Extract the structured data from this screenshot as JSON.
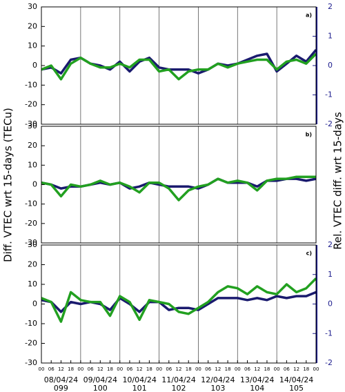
{
  "y_label": "Diff. VTEC wrt 15-days (TECu)",
  "y2_label": "Rel. VTEC diff. wrt 15-days",
  "dates": [
    "08/04/24",
    "09/04/24",
    "10/04/24",
    "11/04/24",
    "12/04/24",
    "13/04/24",
    "14/04/24"
  ],
  "doy": [
    "099",
    "100",
    "101",
    "102",
    "103",
    "104",
    "105"
  ],
  "chart_data": [
    {
      "type": "line",
      "label": "a)",
      "x": [
        0,
        6,
        12,
        18,
        24,
        30,
        36,
        42,
        48,
        54,
        60,
        66,
        72,
        78,
        84,
        90,
        96,
        102,
        108,
        114,
        120,
        126,
        132,
        138,
        144,
        150,
        156,
        162,
        168
      ],
      "xlim": [
        0,
        168
      ],
      "ylim": [
        -30,
        30
      ],
      "yticks": [
        -30,
        -20,
        -10,
        0,
        10,
        20,
        30
      ],
      "y2lim": [
        -2,
        2
      ],
      "y2ticks": [
        -2,
        -1,
        0,
        1,
        2
      ],
      "series": [
        {
          "color": "#1a1a6e",
          "values": [
            -2,
            -1,
            -4,
            3,
            4,
            1,
            0,
            -2,
            2,
            -3,
            2,
            4,
            -1,
            -2,
            -2,
            -2,
            -4,
            -2,
            1,
            0,
            1,
            3,
            5,
            6,
            -3,
            1,
            5,
            2,
            8
          ]
        },
        {
          "color": "#22a020",
          "values": [
            -2,
            0,
            -7,
            1,
            4,
            1,
            -1,
            -1,
            1,
            -1,
            3,
            3,
            -3,
            -2,
            -7,
            -3,
            -2,
            -2,
            1,
            -1,
            1,
            2,
            3,
            3,
            -2,
            2,
            3,
            1,
            6
          ]
        }
      ]
    },
    {
      "type": "line",
      "label": "b)",
      "x": [
        0,
        6,
        12,
        18,
        24,
        30,
        36,
        42,
        48,
        54,
        60,
        66,
        72,
        78,
        84,
        90,
        96,
        102,
        108,
        114,
        120,
        126,
        132,
        138,
        144,
        150,
        156,
        162,
        168
      ],
      "xlim": [
        0,
        168
      ],
      "ylim": [
        -30,
        30
      ],
      "yticks": [
        -30,
        -20,
        -10,
        0,
        10,
        20,
        30
      ],
      "series": [
        {
          "color": "#1a1a6e",
          "values": [
            1,
            0,
            -2,
            -1,
            -1,
            0,
            1,
            0,
            1,
            -2,
            -1,
            1,
            0,
            -1,
            -1,
            -1,
            -2,
            0,
            3,
            1,
            1,
            1,
            -1,
            2,
            2,
            3,
            3,
            2,
            3
          ]
        },
        {
          "color": "#22a020",
          "values": [
            1,
            0,
            -6,
            0,
            -1,
            0,
            2,
            0,
            1,
            -1,
            -4,
            1,
            1,
            -2,
            -8,
            -3,
            -1,
            0,
            3,
            1,
            2,
            1,
            -3,
            2,
            3,
            3,
            4,
            4,
            4
          ]
        }
      ]
    },
    {
      "type": "line",
      "label": "c)",
      "x": [
        0,
        6,
        12,
        18,
        24,
        30,
        36,
        42,
        48,
        54,
        60,
        66,
        72,
        78,
        84,
        90,
        96,
        102,
        108,
        114,
        120,
        126,
        132,
        138,
        144,
        150,
        156,
        162,
        168
      ],
      "xlim": [
        0,
        168
      ],
      "ylim": [
        -30,
        30
      ],
      "yticks": [
        -30,
        -20,
        -10,
        0,
        10,
        20,
        30
      ],
      "y2lim": [
        -2,
        2
      ],
      "y2ticks": [
        -2,
        -1,
        0,
        1,
        2
      ],
      "xticks": [
        {
          "value": 0,
          "label": "00"
        },
        {
          "value": 6,
          "label": "06"
        },
        {
          "value": 12,
          "label": "12"
        },
        {
          "value": 18,
          "label": "18"
        },
        {
          "value": 24,
          "label": "00"
        },
        {
          "value": 30,
          "label": "06"
        },
        {
          "value": 36,
          "label": "12"
        },
        {
          "value": 42,
          "label": "18"
        },
        {
          "value": 48,
          "label": "00"
        },
        {
          "value": 54,
          "label": "06"
        },
        {
          "value": 60,
          "label": "12"
        },
        {
          "value": 66,
          "label": "18"
        },
        {
          "value": 72,
          "label": "00"
        },
        {
          "value": 78,
          "label": "06"
        },
        {
          "value": 84,
          "label": "12"
        },
        {
          "value": 90,
          "label": "18"
        },
        {
          "value": 96,
          "label": "00"
        },
        {
          "value": 102,
          "label": "06"
        },
        {
          "value": 108,
          "label": "12"
        },
        {
          "value": 114,
          "label": "18"
        },
        {
          "value": 120,
          "label": "00"
        },
        {
          "value": 126,
          "label": "06"
        },
        {
          "value": 132,
          "label": "12"
        },
        {
          "value": 138,
          "label": "18"
        },
        {
          "value": 144,
          "label": "00"
        },
        {
          "value": 150,
          "label": "06"
        },
        {
          "value": 156,
          "label": "12"
        },
        {
          "value": 162,
          "label": "18"
        },
        {
          "value": 168,
          "label": "00"
        }
      ],
      "series": [
        {
          "color": "#1a1a6e",
          "values": [
            2,
            1,
            -4,
            1,
            0,
            1,
            0,
            -3,
            3,
            0,
            -4,
            1,
            1,
            -3,
            -2,
            -2,
            -3,
            0,
            3,
            3,
            3,
            2,
            3,
            2,
            4,
            3,
            4,
            4,
            6
          ]
        },
        {
          "color": "#22a020",
          "values": [
            3,
            1,
            -9,
            6,
            2,
            1,
            1,
            -6,
            4,
            1,
            -8,
            2,
            1,
            0,
            -4,
            -5,
            -2,
            1,
            6,
            9,
            8,
            5,
            9,
            6,
            5,
            10,
            6,
            8,
            13
          ]
        }
      ]
    }
  ]
}
